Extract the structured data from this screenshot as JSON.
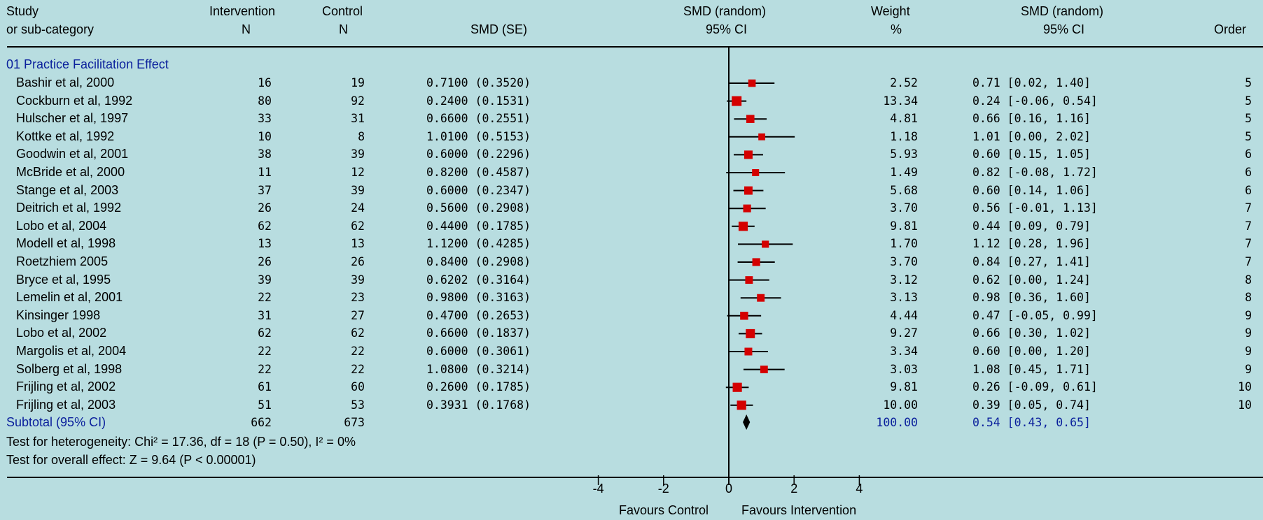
{
  "header": {
    "study": "Study",
    "subcat": "or sub-category",
    "intervention": "Intervention",
    "intervention_n": "N",
    "control": "Control",
    "control_n": "N",
    "smd_se": "SMD (SE)",
    "smd_random_plot": "SMD (random)",
    "ci_plot": "95% CI",
    "weight": "Weight",
    "weight_unit": "%",
    "smd_random_col": "SMD (random)",
    "ci_col": "95% CI",
    "order": "Order"
  },
  "group_title": "01 Practice Facilitation Effect",
  "studies": [
    {
      "name": "Bashir et al, 2000",
      "n_int": "16",
      "n_ctl": "19",
      "smd_se": "0.7100 (0.3520)",
      "weight": "2.52",
      "ci_text": "0.71 [0.02, 1.40]",
      "order": "5"
    },
    {
      "name": "Cockburn et al, 1992",
      "n_int": "80",
      "n_ctl": "92",
      "smd_se": "0.2400 (0.1531)",
      "weight": "13.34",
      "ci_text": "0.24 [-0.06, 0.54]",
      "order": "5"
    },
    {
      "name": "Hulscher et al, 1997",
      "n_int": "33",
      "n_ctl": "31",
      "smd_se": "0.6600 (0.2551)",
      "weight": "4.81",
      "ci_text": "0.66 [0.16, 1.16]",
      "order": "5"
    },
    {
      "name": "Kottke et al, 1992",
      "n_int": "10",
      "n_ctl": "8",
      "smd_se": "1.0100 (0.5153)",
      "weight": "1.18",
      "ci_text": "1.01 [0.00, 2.02]",
      "order": "5"
    },
    {
      "name": "Goodwin et al, 2001",
      "n_int": "38",
      "n_ctl": "39",
      "smd_se": "0.6000 (0.2296)",
      "weight": "5.93",
      "ci_text": "0.60 [0.15, 1.05]",
      "order": "6"
    },
    {
      "name": "McBride et al, 2000",
      "n_int": "11",
      "n_ctl": "12",
      "smd_se": "0.8200 (0.4587)",
      "weight": "1.49",
      "ci_text": "0.82 [-0.08, 1.72]",
      "order": "6"
    },
    {
      "name": "Stange et al, 2003",
      "n_int": "37",
      "n_ctl": "39",
      "smd_se": "0.6000 (0.2347)",
      "weight": "5.68",
      "ci_text": "0.60 [0.14, 1.06]",
      "order": "6"
    },
    {
      "name": "Deitrich et al, 1992",
      "n_int": "26",
      "n_ctl": "24",
      "smd_se": "0.5600 (0.2908)",
      "weight": "3.70",
      "ci_text": "0.56 [-0.01, 1.13]",
      "order": "7"
    },
    {
      "name": "Lobo et al, 2004",
      "n_int": "62",
      "n_ctl": "62",
      "smd_se": "0.4400 (0.1785)",
      "weight": "9.81",
      "ci_text": "0.44 [0.09, 0.79]",
      "order": "7"
    },
    {
      "name": "Modell et al, 1998",
      "n_int": "13",
      "n_ctl": "13",
      "smd_se": "1.1200 (0.4285)",
      "weight": "1.70",
      "ci_text": "1.12 [0.28, 1.96]",
      "order": "7"
    },
    {
      "name": "Roetzhiem 2005",
      "n_int": "26",
      "n_ctl": "26",
      "smd_se": "0.8400 (0.2908)",
      "weight": "3.70",
      "ci_text": "0.84 [0.27, 1.41]",
      "order": "7"
    },
    {
      "name": "Bryce et al, 1995",
      "n_int": "39",
      "n_ctl": "39",
      "smd_se": "0.6202 (0.3164)",
      "weight": "3.12",
      "ci_text": "0.62 [0.00, 1.24]",
      "order": "8"
    },
    {
      "name": "Lemelin et al, 2001",
      "n_int": "22",
      "n_ctl": "23",
      "smd_se": "0.9800 (0.3163)",
      "weight": "3.13",
      "ci_text": "0.98 [0.36, 1.60]",
      "order": "8"
    },
    {
      "name": "Kinsinger 1998",
      "n_int": "31",
      "n_ctl": "27",
      "smd_se": "0.4700 (0.2653)",
      "weight": "4.44",
      "ci_text": "0.47 [-0.05, 0.99]",
      "order": "9"
    },
    {
      "name": "Lobo et al, 2002",
      "n_int": "62",
      "n_ctl": "62",
      "smd_se": "0.6600 (0.1837)",
      "weight": "9.27",
      "ci_text": "0.66 [0.30, 1.02]",
      "order": "9"
    },
    {
      "name": "Margolis et al, 2004",
      "n_int": "22",
      "n_ctl": "22",
      "smd_se": "0.6000 (0.3061)",
      "weight": "3.34",
      "ci_text": "0.60 [0.00, 1.20]",
      "order": "9"
    },
    {
      "name": "Solberg et al, 1998",
      "n_int": "22",
      "n_ctl": "22",
      "smd_se": "1.0800 (0.3214)",
      "weight": "3.03",
      "ci_text": "1.08 [0.45, 1.71]",
      "order": "9"
    },
    {
      "name": "Frijling et al, 2002",
      "n_int": "61",
      "n_ctl": "60",
      "smd_se": "0.2600 (0.1785)",
      "weight": "9.81",
      "ci_text": "0.26 [-0.09, 0.61]",
      "order": "10"
    },
    {
      "name": "Frijling et al, 2003",
      "n_int": "51",
      "n_ctl": "53",
      "smd_se": "0.3931 (0.1768)",
      "weight": "10.00",
      "ci_text": "0.39 [0.05, 0.74]",
      "order": "10"
    }
  ],
  "subtotal": {
    "label": "Subtotal (95% CI)",
    "n_int": "662",
    "n_ctl": "673",
    "weight": "100.00",
    "ci_text": "0.54 [0.43, 0.65]"
  },
  "heterogeneity": "Test for heterogeneity: Chi² = 17.36, df = 18 (P = 0.50), I² = 0%",
  "overall": "Test for overall effect: Z = 9.64 (P < 0.00001)",
  "favours_left": "Favours Control",
  "favours_right": "Favours Intervention",
  "colors": {
    "background": "#b8dde0",
    "marker": "#d40000",
    "subtotal_text": "#0a1f9c"
  },
  "chart_data": {
    "type": "forest",
    "xlim": [
      -4,
      4
    ],
    "xticks": [
      "-4",
      "-2",
      "0",
      "2",
      "4"
    ],
    "points": [
      {
        "est": 0.71,
        "lo": 0.02,
        "hi": 1.4,
        "w": 2.52
      },
      {
        "est": 0.24,
        "lo": -0.06,
        "hi": 0.54,
        "w": 13.34
      },
      {
        "est": 0.66,
        "lo": 0.16,
        "hi": 1.16,
        "w": 4.81
      },
      {
        "est": 1.01,
        "lo": 0.0,
        "hi": 2.02,
        "w": 1.18
      },
      {
        "est": 0.6,
        "lo": 0.15,
        "hi": 1.05,
        "w": 5.93
      },
      {
        "est": 0.82,
        "lo": -0.08,
        "hi": 1.72,
        "w": 1.49
      },
      {
        "est": 0.6,
        "lo": 0.14,
        "hi": 1.06,
        "w": 5.68
      },
      {
        "est": 0.56,
        "lo": -0.01,
        "hi": 1.13,
        "w": 3.7
      },
      {
        "est": 0.44,
        "lo": 0.09,
        "hi": 0.79,
        "w": 9.81
      },
      {
        "est": 1.12,
        "lo": 0.28,
        "hi": 1.96,
        "w": 1.7
      },
      {
        "est": 0.84,
        "lo": 0.27,
        "hi": 1.41,
        "w": 3.7
      },
      {
        "est": 0.62,
        "lo": 0.0,
        "hi": 1.24,
        "w": 3.12
      },
      {
        "est": 0.98,
        "lo": 0.36,
        "hi": 1.6,
        "w": 3.13
      },
      {
        "est": 0.47,
        "lo": -0.05,
        "hi": 0.99,
        "w": 4.44
      },
      {
        "est": 0.66,
        "lo": 0.3,
        "hi": 1.02,
        "w": 9.27
      },
      {
        "est": 0.6,
        "lo": 0.0,
        "hi": 1.2,
        "w": 3.34
      },
      {
        "est": 1.08,
        "lo": 0.45,
        "hi": 1.71,
        "w": 3.03
      },
      {
        "est": 0.26,
        "lo": -0.09,
        "hi": 0.61,
        "w": 9.81
      },
      {
        "est": 0.39,
        "lo": 0.05,
        "hi": 0.74,
        "w": 10.0
      }
    ],
    "pooled": {
      "est": 0.54,
      "lo": 0.43,
      "hi": 0.65
    }
  }
}
